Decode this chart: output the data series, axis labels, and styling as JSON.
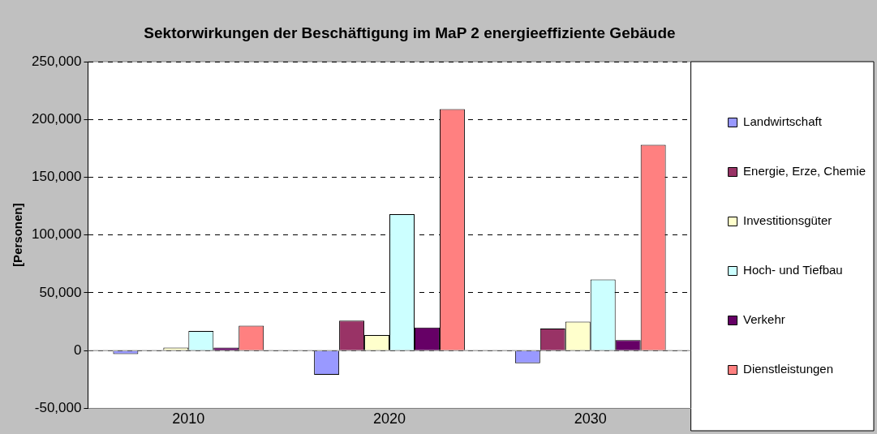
{
  "chart_data": {
    "type": "bar",
    "title": "Sektorwirkungen der Beschäftigung im MaP 2 energieeffiziente Gebäude",
    "ylabel": "[Personen]",
    "categories": [
      "2010",
      "2020",
      "2030"
    ],
    "series": [
      {
        "name": "Landwirtschaft",
        "color": "#9999ff",
        "values": [
          -3000,
          -21000,
          -11000
        ]
      },
      {
        "name": "Energie, Erze, Chemie",
        "color": "#993366",
        "values": [
          0,
          26000,
          19000
        ]
      },
      {
        "name": "Investitionsgüter",
        "color": "#ffffcc",
        "values": [
          2500,
          13500,
          25000
        ]
      },
      {
        "name": "Hoch- und Tiefbau",
        "color": "#ccffff",
        "values": [
          17000,
          118000,
          61500
        ]
      },
      {
        "name": "Verkehr",
        "color": "#660066",
        "values": [
          2500,
          20000,
          9000
        ]
      },
      {
        "name": "Dienstleistungen",
        "color": "#ff8080",
        "values": [
          21500,
          209000,
          178000
        ]
      }
    ],
    "ylim": [
      -50000,
      250000
    ],
    "yticks": [
      {
        "value": -50000,
        "label": "-50,000"
      },
      0,
      {
        "value": 50000,
        "label": "50,000"
      },
      {
        "value": 100000,
        "label": "100,000"
      },
      {
        "value": 150000,
        "label": "150,000"
      },
      {
        "value": 200000,
        "label": "200,000"
      },
      {
        "value": 250000,
        "label": "250,000"
      }
    ],
    "grid": "y",
    "legend": "right"
  }
}
